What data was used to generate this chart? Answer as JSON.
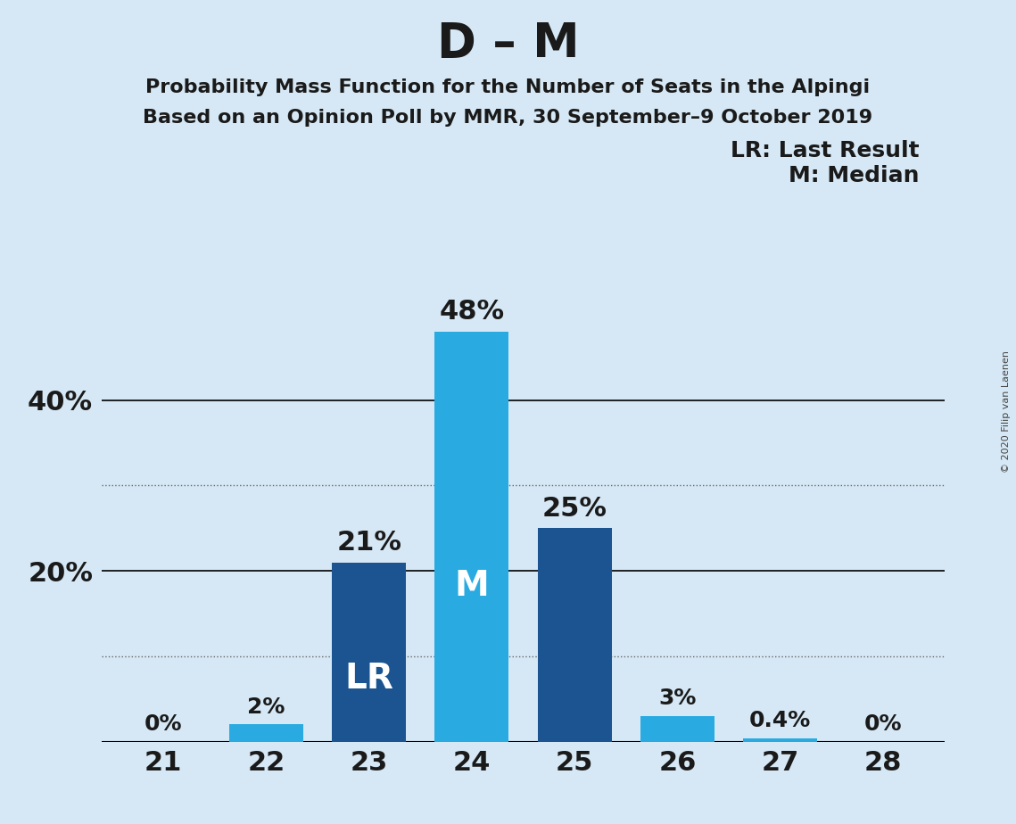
{
  "title": "D – M",
  "subtitle1": "Probability Mass Function for the Number of Seats in the Alpingi",
  "subtitle2": "Based on an Opinion Poll by MMR, 30 September–9 October 2019",
  "copyright": "© 2020 Filip van Laenen",
  "categories": [
    21,
    22,
    23,
    24,
    25,
    26,
    27,
    28
  ],
  "values": [
    0.0,
    2.0,
    21.0,
    48.0,
    25.0,
    3.0,
    0.4,
    0.0
  ],
  "labels": [
    "0%",
    "2%",
    "21%",
    "48%",
    "25%",
    "3%",
    "0.4%",
    "0%"
  ],
  "bar_colors": [
    "#29ABE2",
    "#29ABE2",
    "#1B5490",
    "#29ABE2",
    "#1B5490",
    "#29ABE2",
    "#29ABE2",
    "#29ABE2"
  ],
  "lr_bar": 23,
  "median_bar": 24,
  "lr_label": "LR",
  "median_label": "M",
  "legend_lr": "LR: Last Result",
  "legend_m": "M: Median",
  "background_color": "#D6E8F5",
  "solid_gridlines": [
    20.0,
    40.0
  ],
  "dotted_gridlines": [
    10.0,
    30.0
  ],
  "ylim": [
    0,
    55
  ],
  "title_fontsize": 38,
  "subtitle_fontsize": 16,
  "tick_fontsize": 22,
  "legend_fontsize": 18,
  "bar_label_fontsize": 22,
  "bar_label_small_fontsize": 18,
  "lr_m_fontsize": 28,
  "inner_label_color": "#FFFFFF",
  "outer_label_color": "#1a1a1a"
}
